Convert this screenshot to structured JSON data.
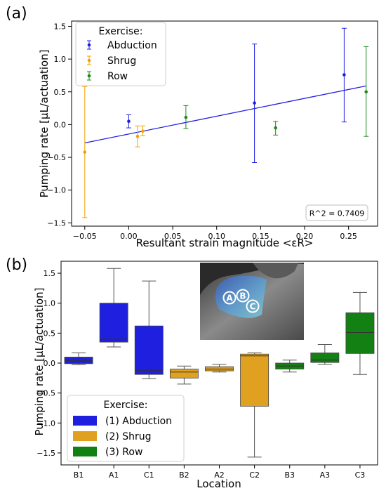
{
  "chart_data": [
    {
      "type": "scatter",
      "panel_label": "(a)",
      "xlabel": "Resultant strain magnitude <εR>",
      "ylabel": "Pumping rate [μL/actuation]",
      "xlim": [
        -0.065,
        0.283
      ],
      "ylim": [
        -1.55,
        1.58
      ],
      "xticks": [
        -0.05,
        0.0,
        0.05,
        0.1,
        0.15,
        0.2,
        0.25
      ],
      "xtick_labels": [
        "−0.05",
        "0.00",
        "0.05",
        "0.10",
        "0.15",
        "0.20",
        "0.25"
      ],
      "yticks": [
        -1.5,
        -1.0,
        -0.5,
        0.0,
        0.5,
        1.0,
        1.5
      ],
      "ytick_labels": [
        "−1.5",
        "−1.0",
        "−0.5",
        "0.0",
        "0.5",
        "1.0",
        "1.5"
      ],
      "grid": false,
      "legend": {
        "title": "Exercise:",
        "location": "top-left"
      },
      "series": [
        {
          "name": "Abduction",
          "color": "#1f1fe0",
          "points": [
            {
              "x": 0.0,
              "y": 0.05,
              "lo": -0.05,
              "hi": 0.15
            },
            {
              "x": 0.143,
              "y": 0.33,
              "lo": -0.58,
              "hi": 1.23
            },
            {
              "x": 0.245,
              "y": 0.76,
              "lo": 0.04,
              "hi": 1.47
            }
          ]
        },
        {
          "name": "Shrug",
          "color": "#f5a000",
          "points": [
            {
              "x": -0.05,
              "y": -0.42,
              "lo": -1.42,
              "hi": 0.58
            },
            {
              "x": 0.01,
              "y": -0.18,
              "lo": -0.34,
              "hi": -0.02
            },
            {
              "x": 0.016,
              "y": -0.1,
              "lo": -0.17,
              "hi": -0.02
            }
          ]
        },
        {
          "name": "Row",
          "color": "#1a8a1a",
          "points": [
            {
              "x": 0.065,
              "y": 0.11,
              "lo": -0.06,
              "hi": 0.29
            },
            {
              "x": 0.167,
              "y": -0.05,
              "lo": -0.16,
              "hi": 0.05
            },
            {
              "x": 0.27,
              "y": 0.5,
              "lo": -0.18,
              "hi": 1.19
            }
          ]
        }
      ],
      "fit_line": {
        "color": "#1f1fe0",
        "x": [
          -0.05,
          0.27
        ],
        "y": [
          -0.28,
          0.59
        ]
      },
      "annotation": "R^2 = 0.7409"
    },
    {
      "type": "box",
      "panel_label": "(b)",
      "xlabel": "Location",
      "ylabel": "Pumping rate [μL/actuation]",
      "ylim": [
        -1.7,
        1.7
      ],
      "yticks": [
        -1.5,
        -1.0,
        -0.5,
        0.0,
        0.5,
        1.0,
        1.5
      ],
      "ytick_labels": [
        "−1.5",
        "−1.0",
        "−0.5",
        "0.0",
        "0.5",
        "1.0",
        "1.5"
      ],
      "categories": [
        "B1",
        "A1",
        "C1",
        "B2",
        "A2",
        "C2",
        "B3",
        "A3",
        "C3"
      ],
      "boxes": [
        {
          "group": 0,
          "whislo": -0.03,
          "q1": -0.01,
          "med": 0.04,
          "q3": 0.1,
          "whishi": 0.17
        },
        {
          "group": 0,
          "whislo": 0.27,
          "q1": 0.35,
          "med": 0.4,
          "q3": 1.0,
          "whishi": 1.58
        },
        {
          "group": 0,
          "whislo": -0.26,
          "q1": -0.19,
          "med": -0.12,
          "q3": 0.62,
          "whishi": 1.37
        },
        {
          "group": 1,
          "whislo": -0.35,
          "q1": -0.25,
          "med": -0.15,
          "q3": -0.1,
          "whishi": -0.05
        },
        {
          "group": 1,
          "whislo": -0.15,
          "q1": -0.13,
          "med": -0.1,
          "q3": -0.06,
          "whishi": -0.02
        },
        {
          "group": 1,
          "whislo": -1.57,
          "q1": -0.72,
          "med": 0.12,
          "q3": 0.15,
          "whishi": 0.17
        },
        {
          "group": 2,
          "whislo": -0.15,
          "q1": -0.1,
          "med": -0.05,
          "q3": 0.0,
          "whishi": 0.05
        },
        {
          "group": 2,
          "whislo": -0.02,
          "q1": 0.01,
          "med": 0.05,
          "q3": 0.17,
          "whishi": 0.31
        },
        {
          "group": 2,
          "whislo": -0.19,
          "q1": 0.16,
          "med": 0.51,
          "q3": 0.84,
          "whishi": 1.18
        }
      ],
      "legend": {
        "title": "Exercise:",
        "location": "bottom-left",
        "entries": [
          {
            "label": "(1) Abduction",
            "color": "#1f1fe0"
          },
          {
            "label": "(2) Shrug",
            "color": "#e0a020"
          },
          {
            "label": "(3) Row",
            "color": "#138013"
          }
        ]
      },
      "inset": {
        "markers": [
          "A",
          "B",
          "C"
        ]
      }
    }
  ]
}
